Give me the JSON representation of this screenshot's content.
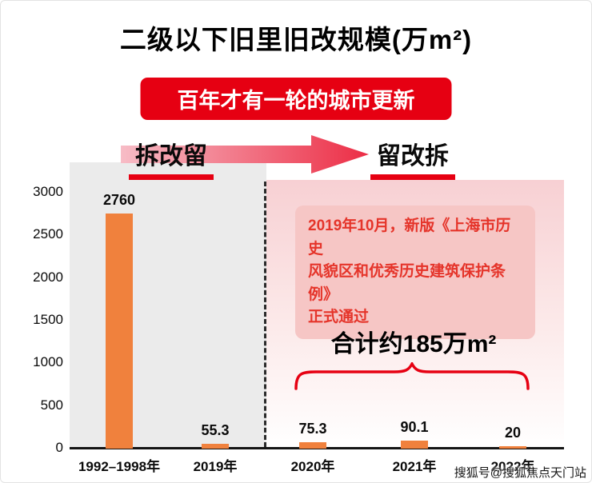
{
  "page": {
    "title": "二级以下旧里旧改规模(万m²)",
    "banner": "百年才有一轮的城市更新",
    "phase_left": "拆改留",
    "phase_right": "留改拆",
    "total_label": "合计约185万m²",
    "watermark": "搜狐号@搜狐焦点天门站"
  },
  "note": {
    "lines": [
      "2019年10月，新版《上海市历史",
      "风貌区和优秀历史建筑保护条例》",
      "正式通过"
    ]
  },
  "colors": {
    "bar": "#f0813d",
    "accent_red": "#e60012",
    "note_bg": "#f6c6c5",
    "note_text": "#e5342a",
    "plot_bg": "#ebebeb",
    "pink_top": "#f7d0d3"
  },
  "chart_data": {
    "type": "bar",
    "title": "二级以下旧里旧改规模(万m²)",
    "categories": [
      "1992–1998年",
      "2019年",
      "2020年",
      "2021年",
      "2022年"
    ],
    "values": [
      2760,
      55.3,
      75.3,
      90.1,
      20
    ],
    "value_labels": [
      "2760",
      "55.3",
      "75.3",
      "90.1",
      "20"
    ],
    "xlabel": "",
    "ylabel": "",
    "ylim": [
      0,
      3000
    ],
    "yticks": [
      0,
      500,
      1000,
      1500,
      2000,
      2500,
      3000
    ],
    "grid": false,
    "legend": false,
    "annotations": {
      "divider_after_category": "2019年",
      "phase_left": "拆改留",
      "phase_right": "留改拆",
      "total_right_side": "合计约185万m²",
      "note": "2019年10月，新版《上海市历史风貌区和优秀历史建筑保护条例》正式通过"
    }
  }
}
